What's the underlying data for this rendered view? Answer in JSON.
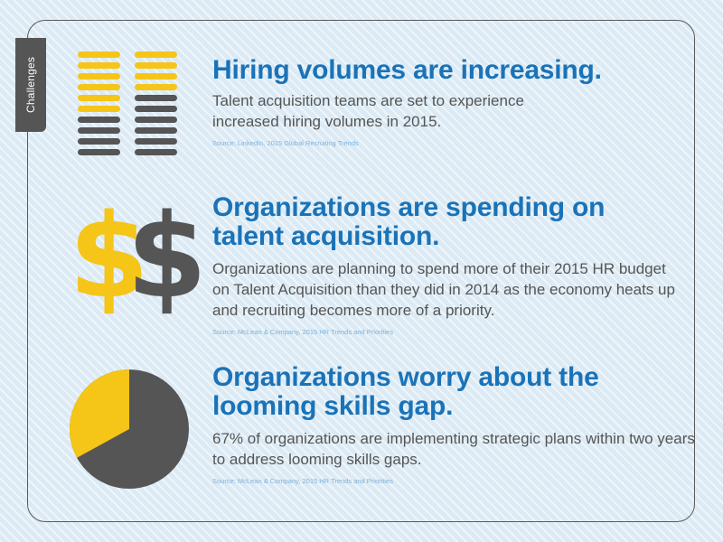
{
  "sidebar": {
    "tab_label": "Challenges"
  },
  "colors": {
    "accent_blue": "#1a73b8",
    "yellow": "#f5c518",
    "dark_gray": "#555555"
  },
  "sections": [
    {
      "icon": "coin-stacks-icon",
      "heading": "Hiring volumes are increasing.",
      "body": "Talent acquisition teams are set to experience increased hiring volumes in 2015.",
      "source": "Source: LinkedIn, 2015 Global Recruiting Trends"
    },
    {
      "icon": "dollar-signs-icon",
      "heading": "Organizations are spending on talent acquisition.",
      "body": "Organizations are planning to spend more of their 2015 HR budget on Talent Acquisition than they did in 2014 as the economy heats up and recruiting becomes more of a priority.",
      "source": "Source: McLean & Company, 2015 HR Trends and Priorities"
    },
    {
      "icon": "pie-chart-icon",
      "heading": "Organizations worry about the looming skills gap.",
      "body": "67% of organizations are implementing strategic plans within two years to address looming skills gaps.",
      "source": "Source: McLean & Company, 2015 HR Trends and Priorities"
    }
  ],
  "icons": {
    "stacks": {
      "coins_per_stack": 10,
      "highlighted_coins": [
        6,
        4
      ]
    },
    "dollar_signs": [
      "$",
      "$"
    ],
    "pie": {
      "highlighted_fraction": 0.33
    }
  }
}
